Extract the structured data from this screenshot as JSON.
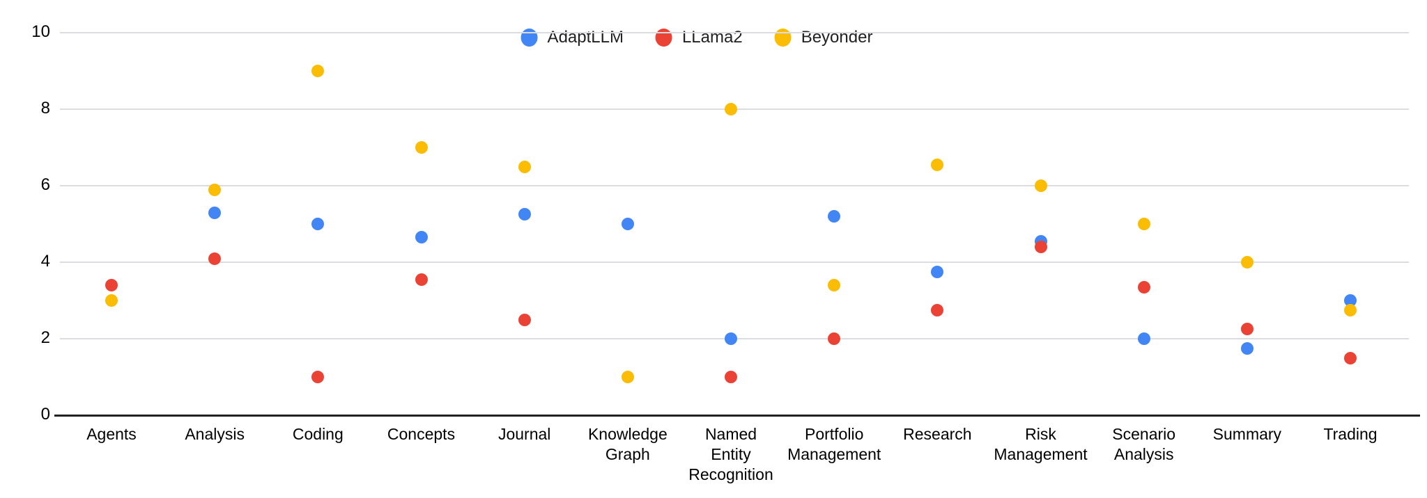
{
  "chart_data": {
    "type": "scatter",
    "title": "",
    "xlabel": "",
    "ylabel": "",
    "categories": [
      "Agents",
      "Analysis",
      "Coding",
      "Concepts",
      "Journal",
      "Knowledge Graph",
      "Named Entity Recognition",
      "Portfolio Management",
      "Research",
      "Risk Management",
      "Scenario Analysis",
      "Summary",
      "Trading"
    ],
    "category_label_lines": [
      [
        "Agents"
      ],
      [
        "Analysis"
      ],
      [
        "Coding"
      ],
      [
        "Concepts"
      ],
      [
        "Journal"
      ],
      [
        "Knowledge",
        "Graph"
      ],
      [
        "Named",
        "Entity",
        "Recognition"
      ],
      [
        "Portfolio",
        "Management"
      ],
      [
        "Research"
      ],
      [
        "Risk",
        "Management"
      ],
      [
        "Scenario",
        "Analysis"
      ],
      [
        "Summary"
      ],
      [
        "Trading"
      ]
    ],
    "series": [
      {
        "name": "AdaptLLM",
        "color": "#4285F4",
        "values": [
          null,
          5.3,
          5.0,
          4.65,
          5.25,
          5.0,
          2.0,
          5.2,
          3.75,
          4.55,
          2.0,
          1.75,
          3.0
        ]
      },
      {
        "name": "LLama2",
        "color": "#EA4335",
        "values": [
          3.4,
          4.1,
          1.0,
          3.55,
          2.5,
          null,
          1.0,
          2.0,
          2.75,
          4.4,
          3.35,
          2.25,
          1.5
        ]
      },
      {
        "name": "Beyonder",
        "color": "#FBBC04",
        "values": [
          3.0,
          5.9,
          9.0,
          7.0,
          6.5,
          1.0,
          8.0,
          3.4,
          6.55,
          6.0,
          5.0,
          4.0,
          2.75
        ]
      }
    ],
    "y_axis": {
      "min": 0,
      "max": 10,
      "tick_step": 2,
      "tick_labels": [
        "10",
        "8",
        "6",
        "4",
        "2",
        "0"
      ]
    },
    "grid": true,
    "legend_position": "top-center",
    "colors": {
      "gridline": "#DADCE0",
      "axis_line": "#212121",
      "text": "#000000",
      "background": "#FFFFFF"
    }
  }
}
